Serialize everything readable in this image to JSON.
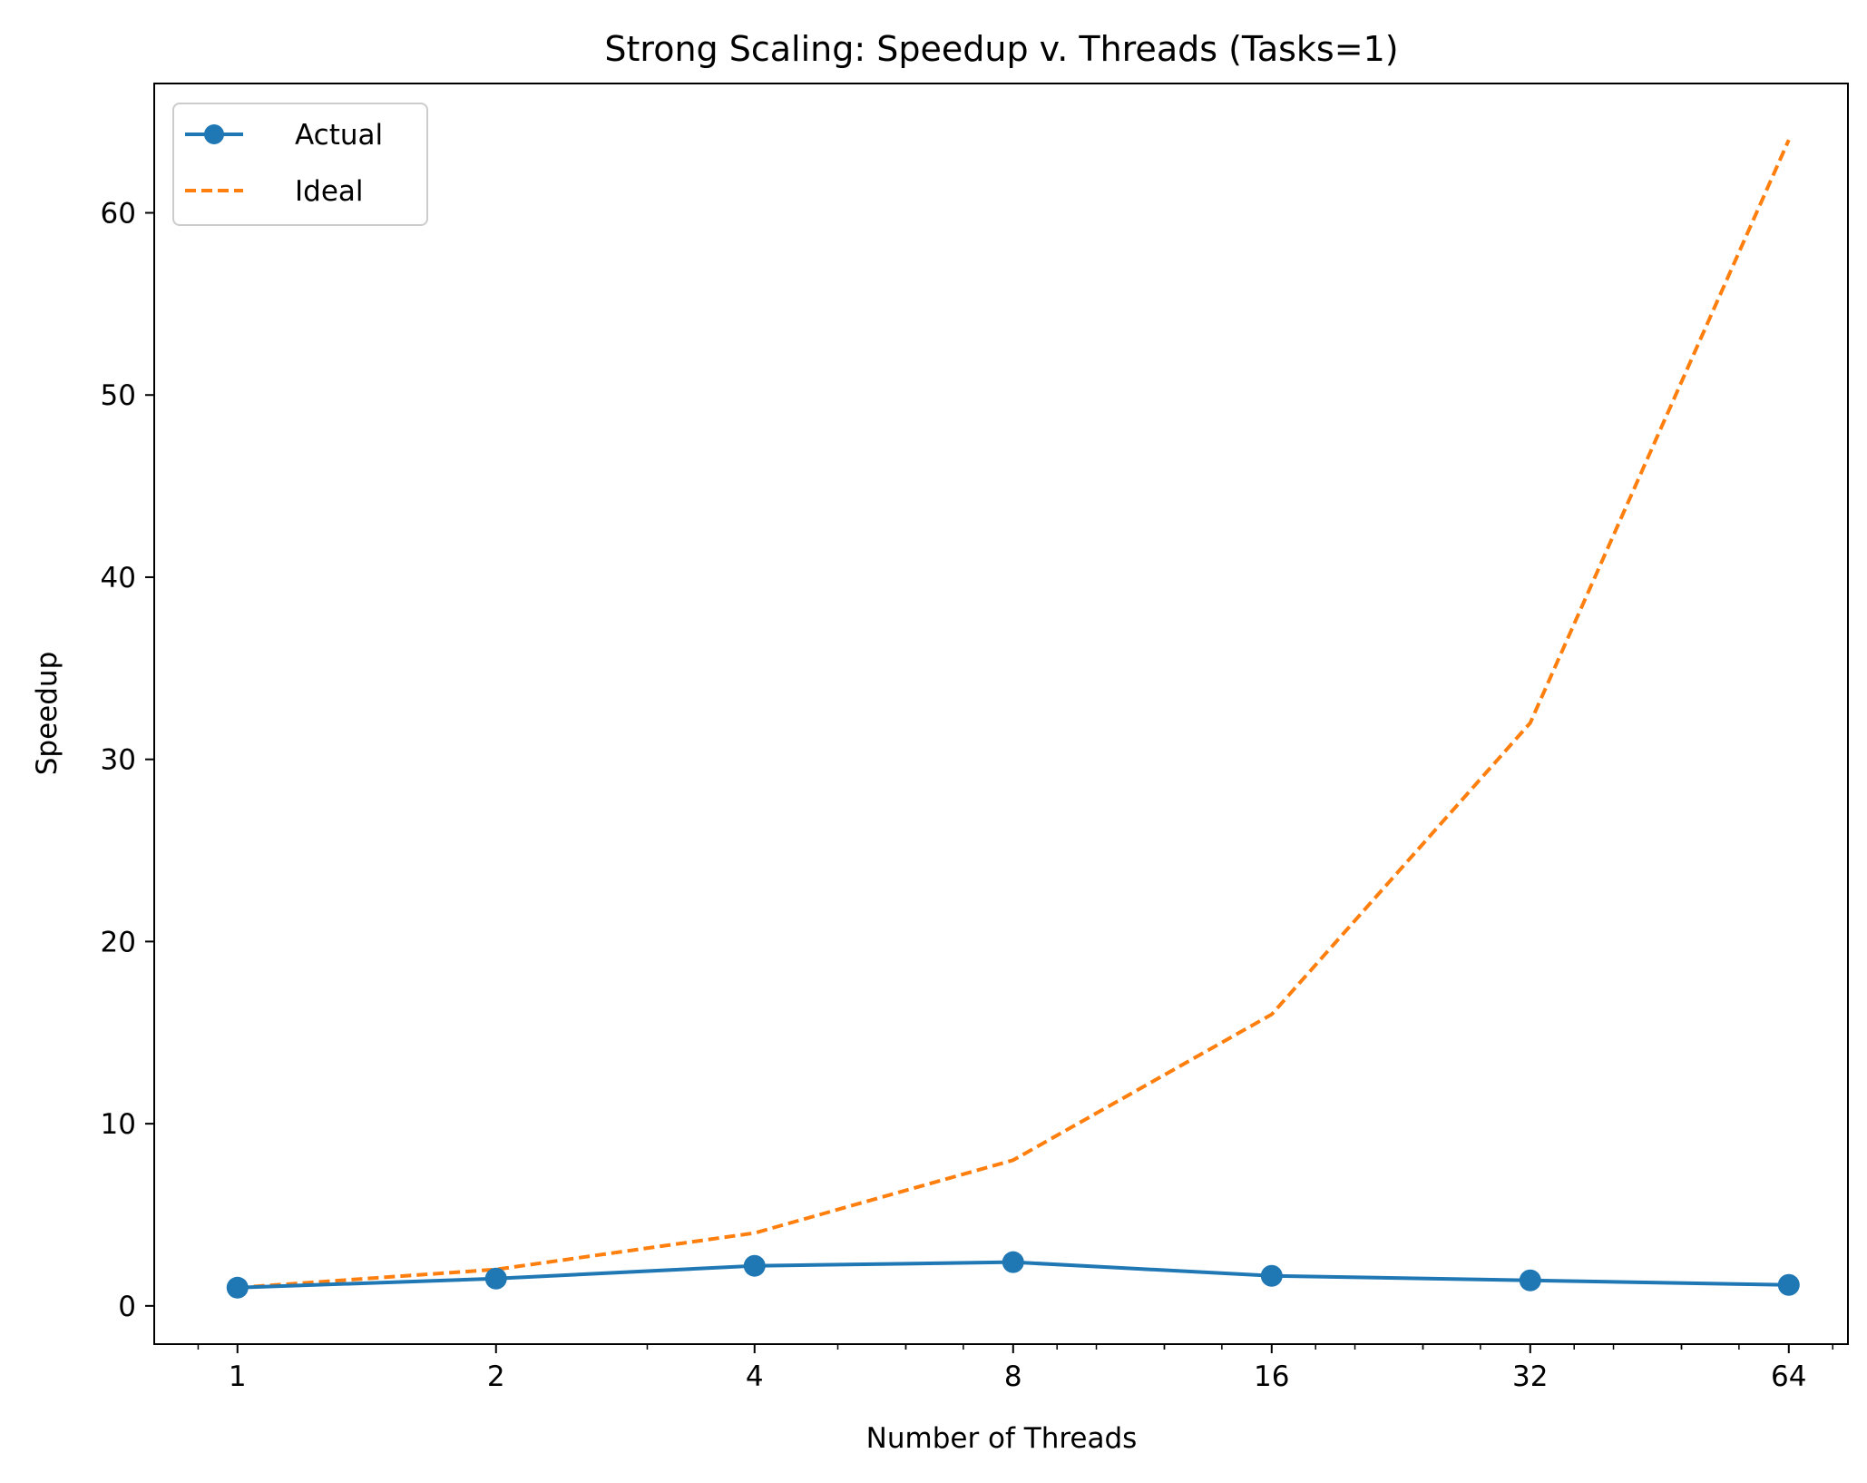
{
  "chart_data": {
    "type": "line",
    "title": "Strong Scaling: Speedup v. Threads (Tasks=1)",
    "xlabel": "Number of Threads",
    "ylabel": "Speedup",
    "x_scale": "log2",
    "x": [
      1,
      2,
      4,
      8,
      16,
      32,
      64
    ],
    "x_tick_labels": [
      "1",
      "2",
      "4",
      "8",
      "16",
      "32",
      "64"
    ],
    "y_ticks": [
      0,
      10,
      20,
      30,
      40,
      50,
      60
    ],
    "y_tick_labels": [
      "0",
      "10",
      "20",
      "30",
      "40",
      "50",
      "60"
    ],
    "xlim": [
      0.8,
      75
    ],
    "ylim": [
      -2.1,
      67.1
    ],
    "grid": false,
    "legend_position": "top-left",
    "series": [
      {
        "name": "Actual",
        "values": [
          1.0,
          1.5,
          2.2,
          2.4,
          1.65,
          1.4,
          1.15
        ],
        "color": "#1f77b4",
        "style": "solid",
        "marker": "circle"
      },
      {
        "name": "Ideal",
        "values": [
          1,
          2,
          4,
          8,
          16,
          32,
          64
        ],
        "color": "#ff7f0e",
        "style": "dashed",
        "marker": "none"
      }
    ]
  }
}
